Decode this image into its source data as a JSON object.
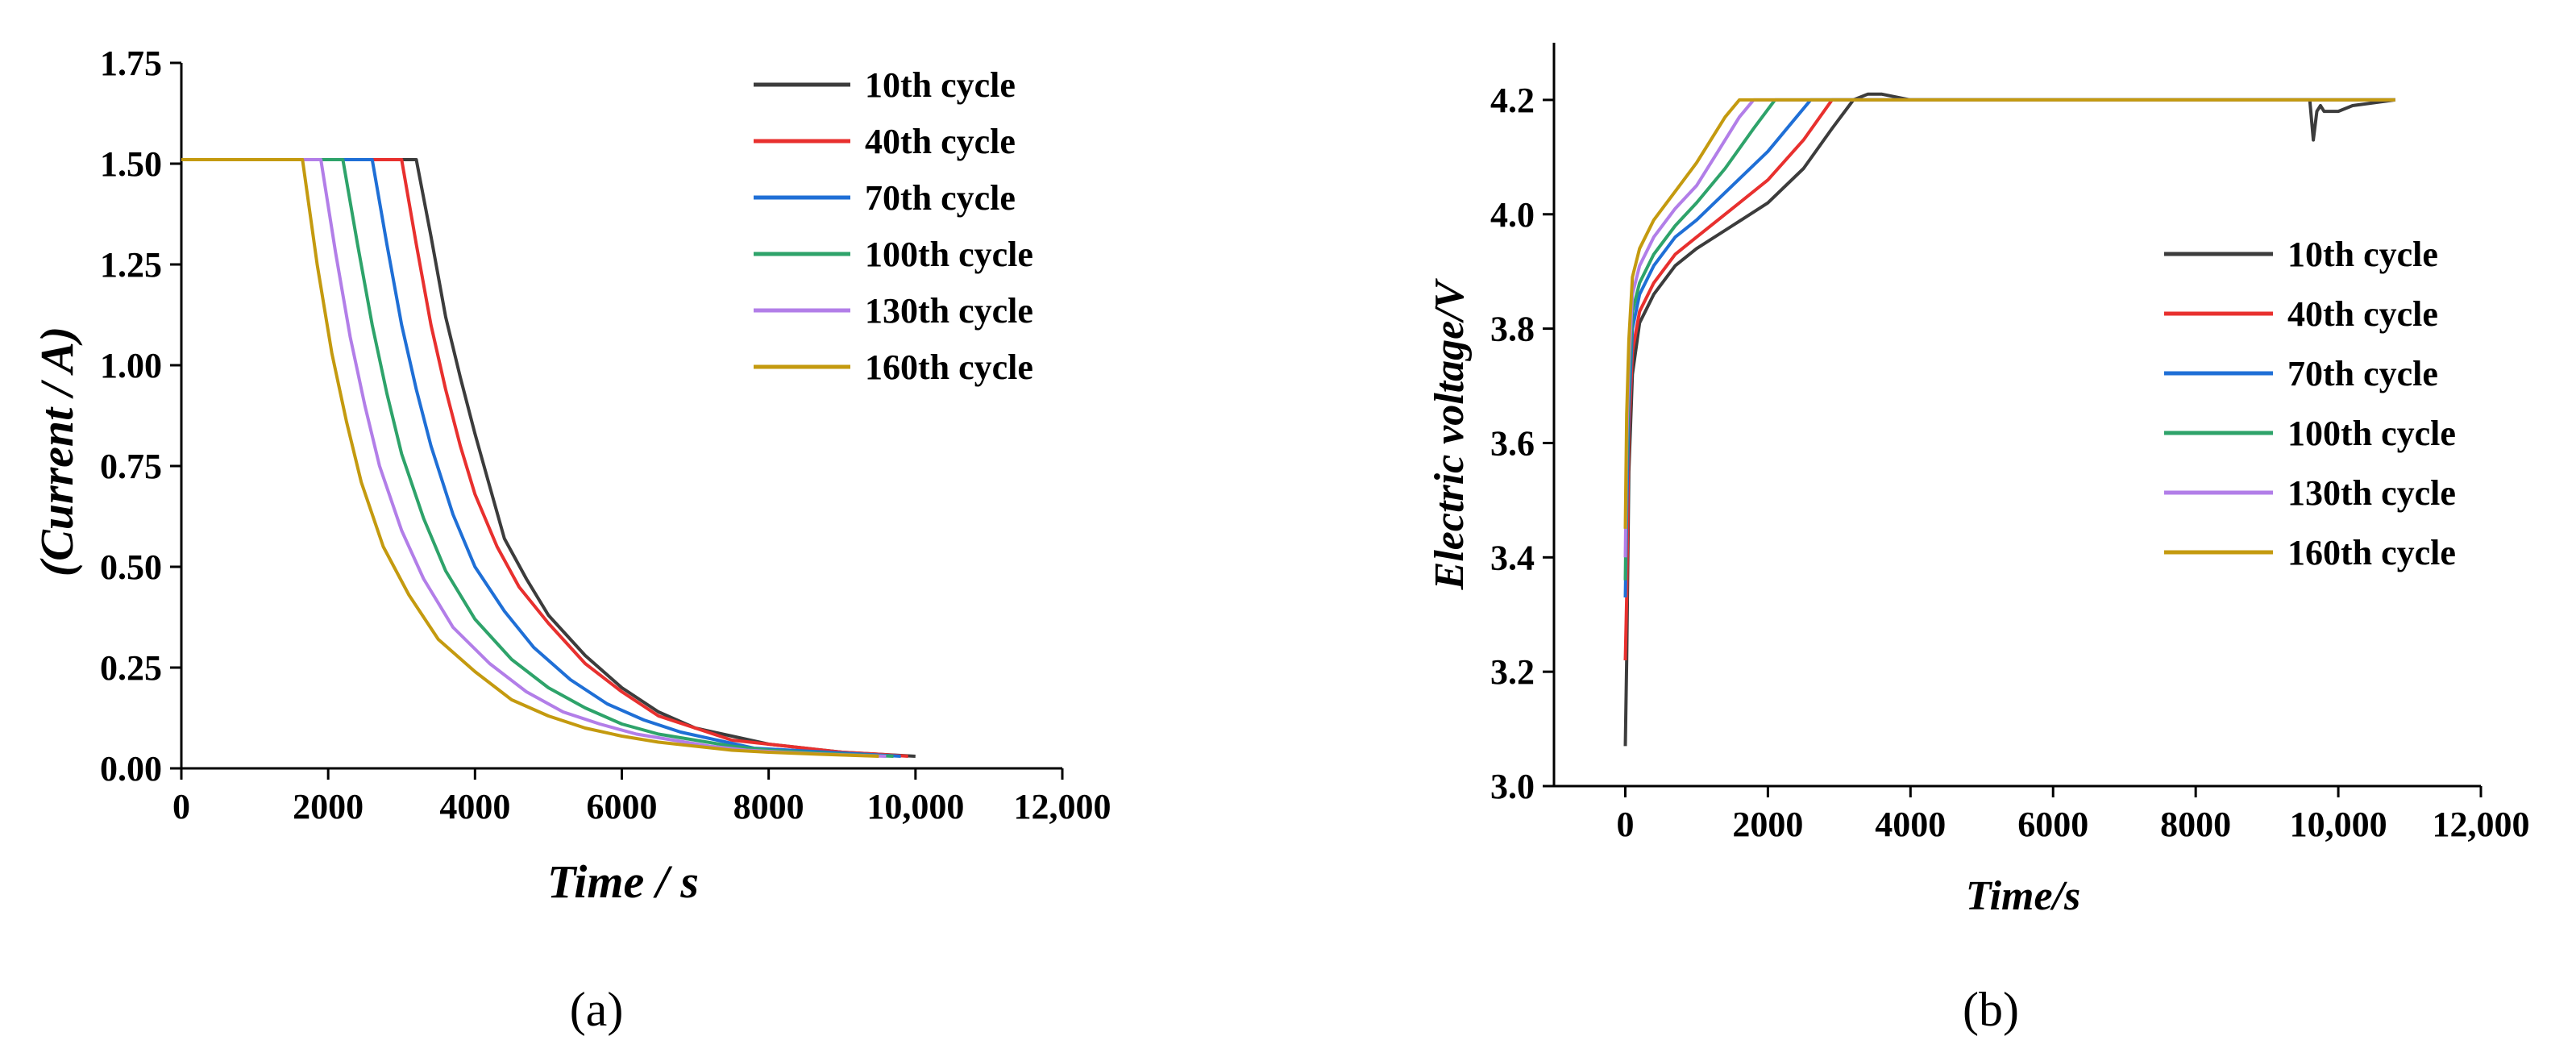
{
  "colors": {
    "c10": "#3c3c3c",
    "c40": "#e8302e",
    "c70": "#1f6fd6",
    "c100": "#2ea36a",
    "c130": "#b27ee8",
    "c160": "#c49a0f"
  },
  "chart_data": [
    {
      "id": "a",
      "type": "line",
      "panel_label": "(a)",
      "title": "",
      "xlabel": "Time / s",
      "ylabel": "(Current / A)",
      "xlim": [
        0,
        12000
      ],
      "ylim": [
        0,
        1.75
      ],
      "xticks": [
        0,
        2000,
        4000,
        6000,
        8000,
        10000,
        12000
      ],
      "xtick_labels": [
        "0",
        "2000",
        "4000",
        "6000",
        "8000",
        "10,000",
        "12,000"
      ],
      "yticks": [
        0,
        0.25,
        0.5,
        0.75,
        1.0,
        1.25,
        1.5,
        1.75
      ],
      "ytick_labels": [
        "0.00",
        "0.25",
        "0.50",
        "0.75",
        "1.00",
        "1.25",
        "1.50",
        "1.75"
      ],
      "legend_position": "top-right",
      "series": [
        {
          "name": "10th cycle",
          "color_key": "c10",
          "x": [
            0,
            3200,
            3400,
            3600,
            3800,
            4000,
            4200,
            4400,
            4700,
            5000,
            5500,
            6000,
            6500,
            7000,
            7500,
            8000,
            8500,
            9000,
            9500,
            10000
          ],
          "y": [
            1.51,
            1.51,
            1.32,
            1.12,
            0.97,
            0.83,
            0.7,
            0.57,
            0.47,
            0.38,
            0.28,
            0.2,
            0.14,
            0.1,
            0.08,
            0.06,
            0.05,
            0.04,
            0.035,
            0.03
          ]
        },
        {
          "name": "40th cycle",
          "color_key": "c40",
          "x": [
            0,
            3000,
            3200,
            3400,
            3600,
            3800,
            4000,
            4300,
            4600,
            5000,
            5500,
            6000,
            6500,
            7000,
            7500,
            8000,
            8500,
            9000,
            9500,
            9900
          ],
          "y": [
            1.51,
            1.51,
            1.3,
            1.1,
            0.94,
            0.8,
            0.68,
            0.55,
            0.45,
            0.36,
            0.26,
            0.19,
            0.13,
            0.1,
            0.07,
            0.06,
            0.05,
            0.04,
            0.035,
            0.03
          ]
        },
        {
          "name": "70th cycle",
          "color_key": "c70",
          "x": [
            0,
            2600,
            2800,
            3000,
            3200,
            3400,
            3700,
            4000,
            4400,
            4800,
            5300,
            5800,
            6300,
            6800,
            7300,
            7800,
            8300,
            8800,
            9300,
            9800
          ],
          "y": [
            1.51,
            1.51,
            1.3,
            1.1,
            0.94,
            0.8,
            0.63,
            0.5,
            0.39,
            0.3,
            0.22,
            0.16,
            0.12,
            0.09,
            0.07,
            0.05,
            0.045,
            0.04,
            0.035,
            0.03
          ]
        },
        {
          "name": "100th cycle",
          "color_key": "c100",
          "x": [
            0,
            2200,
            2400,
            2600,
            2800,
            3000,
            3300,
            3600,
            4000,
            4500,
            5000,
            5500,
            6000,
            6500,
            7000,
            7500,
            8000,
            8500,
            9000,
            9700
          ],
          "y": [
            1.51,
            1.51,
            1.3,
            1.1,
            0.93,
            0.78,
            0.62,
            0.49,
            0.37,
            0.27,
            0.2,
            0.15,
            0.11,
            0.085,
            0.07,
            0.055,
            0.045,
            0.04,
            0.035,
            0.03
          ]
        },
        {
          "name": "130th cycle",
          "color_key": "c130",
          "x": [
            0,
            1900,
            2100,
            2300,
            2500,
            2700,
            3000,
            3300,
            3700,
            4200,
            4700,
            5200,
            5700,
            6200,
            6700,
            7200,
            7700,
            8200,
            8800,
            9600
          ],
          "y": [
            1.51,
            1.51,
            1.28,
            1.07,
            0.9,
            0.75,
            0.59,
            0.47,
            0.35,
            0.26,
            0.19,
            0.14,
            0.11,
            0.085,
            0.07,
            0.055,
            0.045,
            0.04,
            0.035,
            0.03
          ]
        },
        {
          "name": "160th cycle",
          "color_key": "c160",
          "x": [
            0,
            1650,
            1850,
            2050,
            2250,
            2450,
            2750,
            3100,
            3500,
            4000,
            4500,
            5000,
            5500,
            6000,
            6500,
            7000,
            7500,
            8000,
            8700,
            9500
          ],
          "y": [
            1.51,
            1.51,
            1.25,
            1.03,
            0.86,
            0.71,
            0.55,
            0.43,
            0.32,
            0.24,
            0.17,
            0.13,
            0.1,
            0.08,
            0.065,
            0.055,
            0.045,
            0.04,
            0.035,
            0.03
          ]
        }
      ]
    },
    {
      "id": "b",
      "type": "line",
      "panel_label": "(b)",
      "title": "",
      "xlabel": "Time/s",
      "ylabel": "Electric voltage/V",
      "xlim": [
        -1000,
        12000
      ],
      "ylim": [
        3.0,
        4.3
      ],
      "xticks": [
        0,
        2000,
        4000,
        6000,
        8000,
        10000,
        12000
      ],
      "xtick_labels": [
        "0",
        "2000",
        "4000",
        "6000",
        "8000",
        "10,000",
        "12,000"
      ],
      "yticks": [
        3.0,
        3.2,
        3.4,
        3.6,
        3.8,
        4.0,
        4.2
      ],
      "ytick_labels": [
        "3.0",
        "3.2",
        "3.4",
        "3.6",
        "3.8",
        "4.0",
        "4.2"
      ],
      "legend_position": "right",
      "series": [
        {
          "name": "10th cycle",
          "color_key": "c10",
          "x": [
            0,
            20,
            50,
            100,
            200,
            400,
            700,
            1000,
            1500,
            2000,
            2500,
            2900,
            3200,
            3400,
            3600,
            4000,
            6000,
            9000,
            9600,
            9650,
            9700,
            9750,
            9800,
            10000,
            10200,
            10800
          ],
          "y": [
            3.07,
            3.22,
            3.55,
            3.72,
            3.81,
            3.86,
            3.91,
            3.94,
            3.98,
            4.02,
            4.08,
            4.15,
            4.2,
            4.21,
            4.21,
            4.2,
            4.2,
            4.2,
            4.2,
            4.13,
            4.18,
            4.19,
            4.18,
            4.18,
            4.19,
            4.2
          ]
        },
        {
          "name": "40th cycle",
          "color_key": "c40",
          "x": [
            0,
            20,
            50,
            100,
            200,
            400,
            700,
            1000,
            1500,
            2000,
            2500,
            2900,
            3000,
            10800
          ],
          "y": [
            3.22,
            3.33,
            3.62,
            3.76,
            3.83,
            3.88,
            3.93,
            3.96,
            4.01,
            4.06,
            4.13,
            4.2,
            4.2,
            4.2
          ]
        },
        {
          "name": "70th cycle",
          "color_key": "c70",
          "x": [
            0,
            20,
            50,
            100,
            200,
            400,
            700,
            1000,
            1500,
            2000,
            2400,
            2600,
            10800
          ],
          "y": [
            3.33,
            3.48,
            3.66,
            3.8,
            3.86,
            3.91,
            3.96,
            3.99,
            4.05,
            4.11,
            4.17,
            4.2,
            4.2
          ]
        },
        {
          "name": "100th cycle",
          "color_key": "c100",
          "x": [
            0,
            20,
            50,
            100,
            200,
            400,
            700,
            1000,
            1400,
            1800,
            2100,
            10800
          ],
          "y": [
            3.36,
            3.55,
            3.7,
            3.83,
            3.88,
            3.93,
            3.98,
            4.02,
            4.08,
            4.15,
            4.2,
            4.2
          ]
        },
        {
          "name": "130th cycle",
          "color_key": "c130",
          "x": [
            0,
            20,
            50,
            100,
            200,
            400,
            700,
            1000,
            1300,
            1600,
            1800,
            10800
          ],
          "y": [
            3.4,
            3.6,
            3.74,
            3.86,
            3.91,
            3.96,
            4.01,
            4.05,
            4.11,
            4.17,
            4.2,
            4.2
          ]
        },
        {
          "name": "160th cycle",
          "color_key": "c160",
          "x": [
            0,
            20,
            50,
            100,
            200,
            400,
            700,
            1000,
            1200,
            1400,
            1600,
            10800
          ],
          "y": [
            3.45,
            3.65,
            3.78,
            3.89,
            3.94,
            3.99,
            4.04,
            4.09,
            4.13,
            4.17,
            4.2,
            4.2
          ]
        }
      ]
    }
  ]
}
